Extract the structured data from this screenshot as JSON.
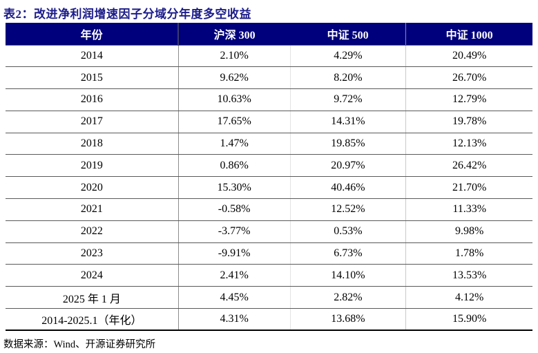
{
  "title": "表2：改进净利润增速因子分域分年度多空收益",
  "table": {
    "columns": [
      "年份",
      "沪深 300",
      "中证 500",
      "中证 1000"
    ],
    "rows": [
      [
        "2014",
        "2.10%",
        "4.29%",
        "20.49%"
      ],
      [
        "2015",
        "9.62%",
        "8.20%",
        "26.70%"
      ],
      [
        "2016",
        "10.63%",
        "9.72%",
        "12.79%"
      ],
      [
        "2017",
        "17.65%",
        "14.31%",
        "19.78%"
      ],
      [
        "2018",
        "1.47%",
        "19.85%",
        "12.13%"
      ],
      [
        "2019",
        "0.86%",
        "20.97%",
        "26.42%"
      ],
      [
        "2020",
        "15.30%",
        "40.46%",
        "21.70%"
      ],
      [
        "2021",
        "-0.58%",
        "12.52%",
        "11.33%"
      ],
      [
        "2022",
        "-3.77%",
        "0.53%",
        "9.98%"
      ],
      [
        "2023",
        "-9.91%",
        "6.73%",
        "1.78%"
      ],
      [
        "2024",
        "2.41%",
        "14.10%",
        "13.53%"
      ],
      [
        "2025 年 1 月",
        "4.45%",
        "2.82%",
        "4.12%"
      ],
      [
        "2014-2025.1（年化）",
        "4.31%",
        "13.68%",
        "15.90%"
      ]
    ]
  },
  "source_note": "数据来源：Wind、开源证券研究所",
  "colors": {
    "header_bg": "#00007C",
    "header_text": "#FFFFFF",
    "title_text": "#1B1B8A",
    "row_rule": "#595959",
    "bottom_rule": "#000000"
  }
}
